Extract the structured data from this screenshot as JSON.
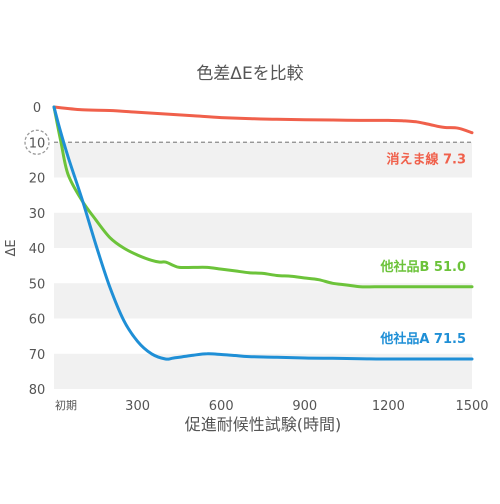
{
  "chart_data": {
    "type": "line",
    "title": "色差ΔEを比較",
    "xlabel": "促進耐候性試験(時間)",
    "ylabel": "ΔE",
    "xlim": [
      0,
      1500
    ],
    "ylim": [
      0,
      80
    ],
    "y_inverted": true,
    "x_ticks": [
      {
        "value": 0,
        "label": "初期"
      },
      {
        "value": 300,
        "label": "300"
      },
      {
        "value": 600,
        "label": "600"
      },
      {
        "value": 900,
        "label": "900"
      },
      {
        "value": 1200,
        "label": "1200"
      },
      {
        "value": 1500,
        "label": "1500"
      }
    ],
    "y_ticks": [
      {
        "value": 0,
        "label": "0"
      },
      {
        "value": 10,
        "label": "10"
      },
      {
        "value": 20,
        "label": "20"
      },
      {
        "value": 30,
        "label": "30"
      },
      {
        "value": 40,
        "label": "40"
      },
      {
        "value": 50,
        "label": "50"
      },
      {
        "value": 60,
        "label": "60"
      },
      {
        "value": 70,
        "label": "70"
      },
      {
        "value": 80,
        "label": "80"
      }
    ],
    "grid": "alternating horizontal bands",
    "reference_line": {
      "value": 10,
      "style": "dashed",
      "highlighted_tick": "10"
    },
    "series": [
      {
        "name": "消えま線 7.3",
        "color": "#f0604b",
        "x": [
          0,
          100,
          200,
          300,
          400,
          500,
          600,
          700,
          800,
          900,
          1000,
          1100,
          1200,
          1250,
          1300,
          1350,
          1400,
          1450,
          1500
        ],
        "y": [
          0,
          0.8,
          1.0,
          1.5,
          2.0,
          2.5,
          3.0,
          3.3,
          3.5,
          3.6,
          3.7,
          3.8,
          3.8,
          3.9,
          4.2,
          5.0,
          5.8,
          6.0,
          7.3
        ]
      },
      {
        "name": "他社品B 51.0",
        "color": "#6cc33a",
        "x": [
          0,
          25,
          50,
          100,
          150,
          200,
          250,
          300,
          350,
          380,
          400,
          430,
          450,
          500,
          550,
          600,
          650,
          700,
          750,
          800,
          850,
          900,
          950,
          1000,
          1050,
          1100,
          1150,
          1200,
          1300,
          1400,
          1500
        ],
        "y": [
          0,
          10.0,
          19.0,
          26.5,
          32.0,
          37.0,
          40.0,
          42.0,
          43.5,
          44.0,
          44.0,
          45.0,
          45.5,
          45.5,
          45.5,
          46.0,
          46.5,
          47.0,
          47.2,
          47.8,
          48.0,
          48.5,
          49.0,
          50.0,
          50.5,
          51.0,
          51.0,
          51.0,
          51.0,
          51.0,
          51.0
        ]
      },
      {
        "name": "他社品A 71.5",
        "color": "#1f8fd6",
        "x": [
          0,
          20,
          50,
          100,
          150,
          200,
          250,
          300,
          350,
          400,
          430,
          500,
          550,
          600,
          650,
          700,
          800,
          900,
          1000,
          1100,
          1200,
          1300,
          1400,
          1500
        ],
        "y": [
          0,
          6.0,
          14.0,
          26.0,
          39.0,
          51.0,
          60.5,
          66.5,
          70.0,
          71.5,
          71.2,
          70.4,
          70.0,
          70.2,
          70.5,
          70.8,
          71.0,
          71.2,
          71.3,
          71.4,
          71.5,
          71.5,
          71.5,
          71.5
        ]
      }
    ]
  }
}
